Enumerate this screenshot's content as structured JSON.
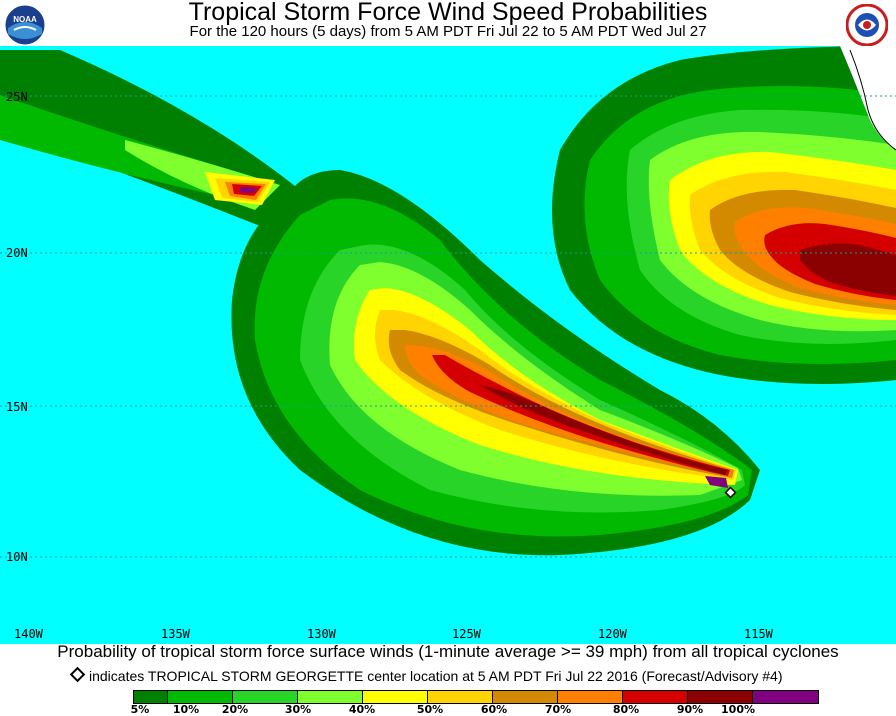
{
  "header": {
    "title": "Tropical Storm Force Wind Speed Probabilities",
    "subtitle": "For the 120 hours (5 days) from 5 AM PDT Fri Jul 22 to 5 AM PDT Wed Jul 27",
    "left_logo_text": "NOAA",
    "right_logo_text": "NATIONAL WEATHER SERVICE"
  },
  "map": {
    "ocean_color": "#00ffff",
    "lat_labels": [
      "25N",
      "20N",
      "15N",
      "10N"
    ],
    "lon_labels": [
      "140W",
      "135W",
      "130W",
      "125W",
      "120W",
      "115W"
    ],
    "storm_marker": "TROPICAL STORM GEORGETTE center"
  },
  "caption": "Probability of tropical storm force surface winds (1-minute average >= 39 mph) from all tropical cyclones",
  "note": "indicates TROPICAL STORM GEORGETTE center location at 5 AM PDT Fri Jul 22 2016 (Forecast/Advisory #4)",
  "legend": {
    "colors": [
      "#008000",
      "#00b900",
      "#28d428",
      "#80ff2e",
      "#ffff00",
      "#ffd400",
      "#d48a00",
      "#ff8000",
      "#d40000",
      "#8b0000",
      "#800080"
    ],
    "labels": [
      "5%",
      "10%",
      "20%",
      "30%",
      "40%",
      "50%",
      "60%",
      "70%",
      "80%",
      "90%",
      "100%"
    ]
  }
}
